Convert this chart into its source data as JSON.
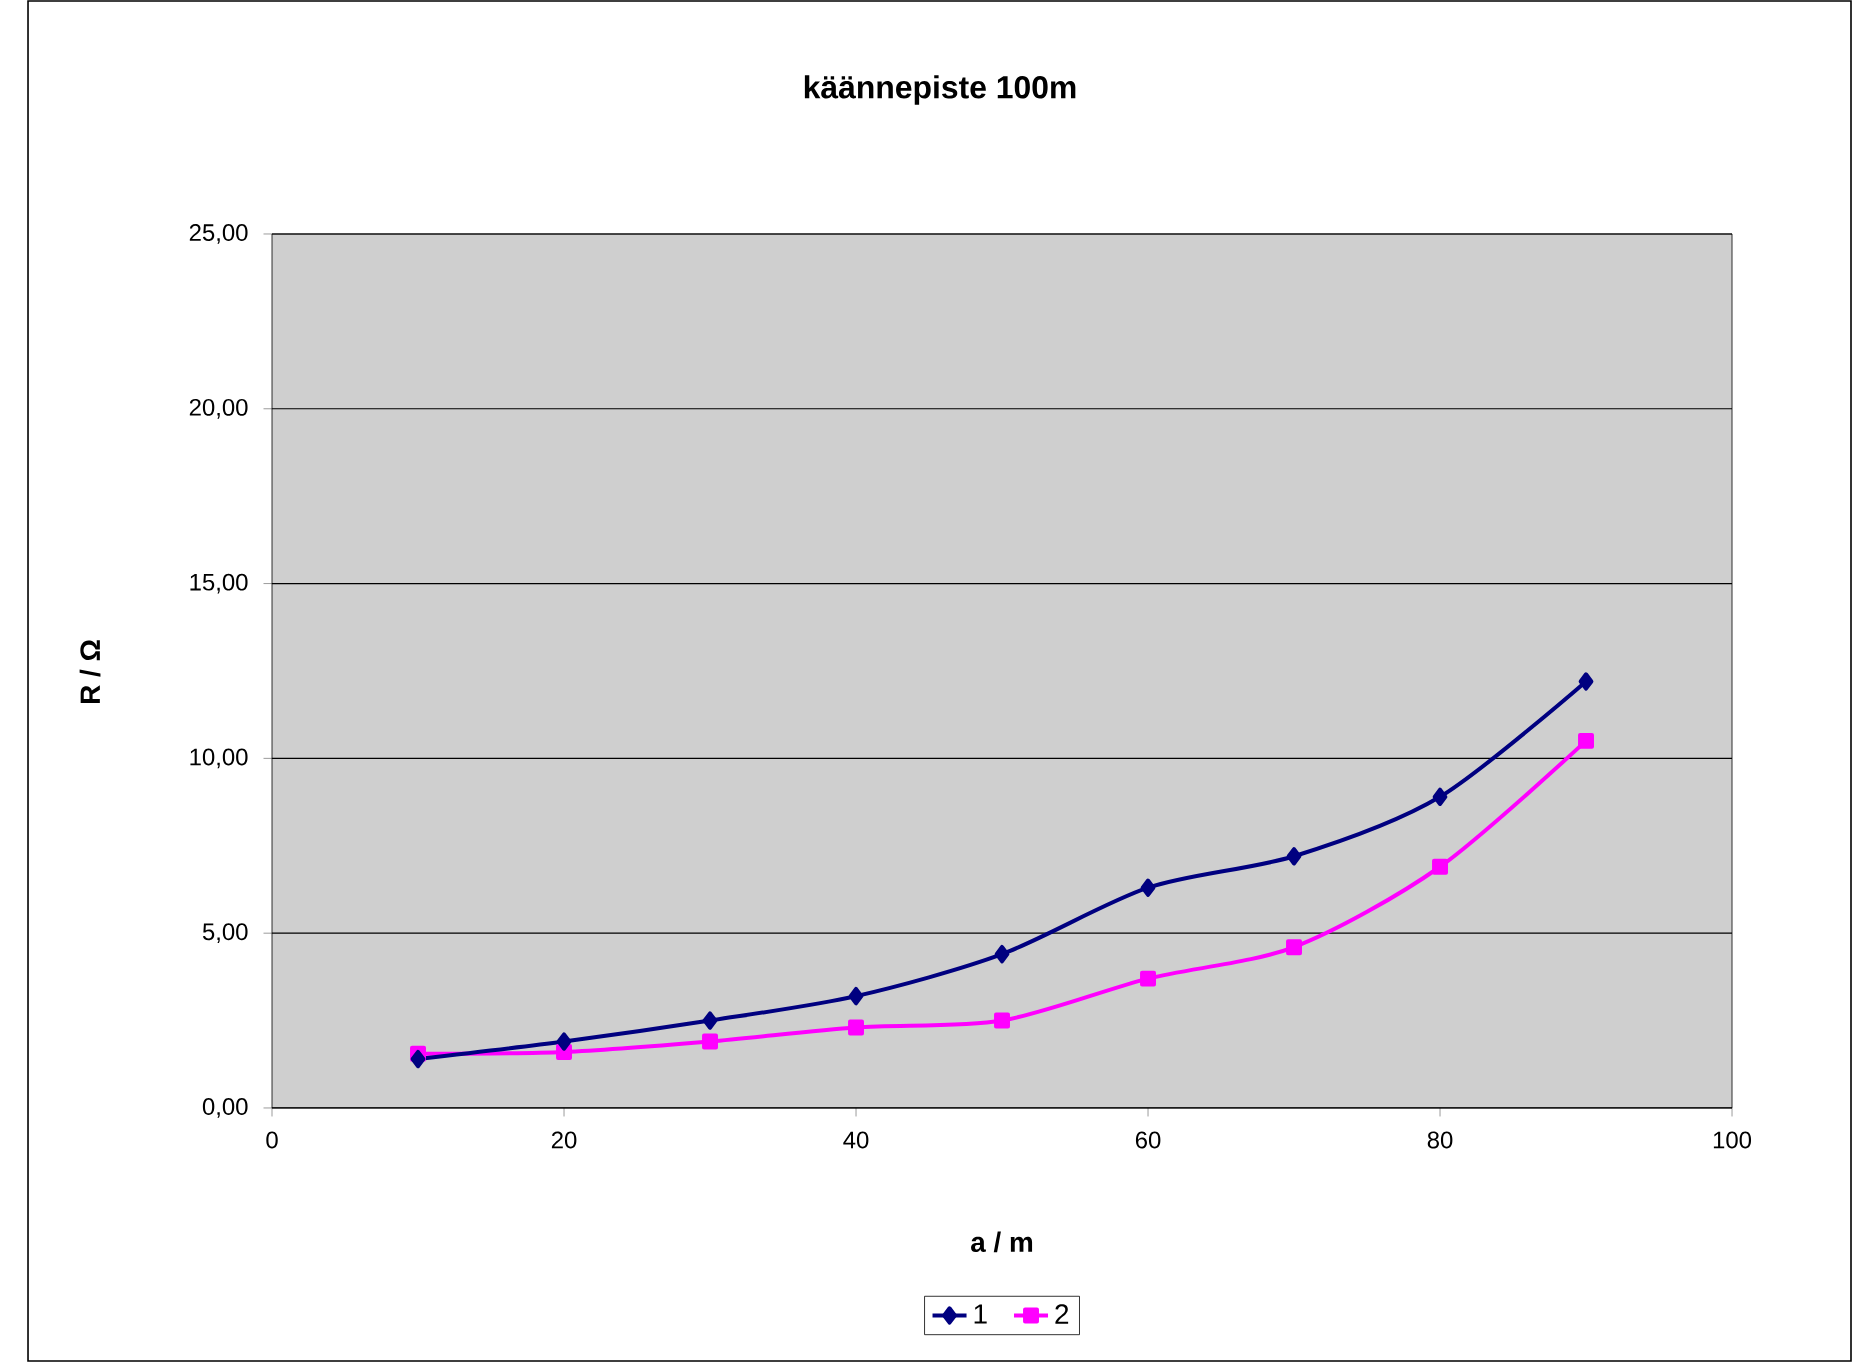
{
  "chart_data": {
    "type": "line",
    "title": "käännepiste 100m",
    "xlabel": "a / m",
    "ylabel": "R / Ω",
    "x": [
      10,
      20,
      30,
      40,
      50,
      60,
      70,
      80,
      90
    ],
    "series": [
      {
        "name": "1",
        "color": "#000080",
        "marker": "diamond",
        "values": [
          1.4,
          1.9,
          2.5,
          3.2,
          4.4,
          6.3,
          7.2,
          8.9,
          12.2
        ]
      },
      {
        "name": "2",
        "color": "#ff00ff",
        "marker": "square",
        "values": [
          1.55,
          1.6,
          1.9,
          2.3,
          2.5,
          3.7,
          4.6,
          6.9,
          10.5
        ]
      }
    ],
    "xlim": [
      0,
      100
    ],
    "xticks": [
      0,
      20,
      40,
      60,
      80,
      100
    ],
    "ylim": [
      0,
      25
    ],
    "yticks": [
      {
        "value": 0,
        "label": "0,00"
      },
      {
        "value": 5,
        "label": "5,00"
      },
      {
        "value": 10,
        "label": "10,00"
      },
      {
        "value": 15,
        "label": "15,00"
      },
      {
        "value": 20,
        "label": "20,00"
      },
      {
        "value": 25,
        "label": "25,00"
      }
    ],
    "grid": "y",
    "legend": "bottom",
    "line_style": "solid"
  }
}
